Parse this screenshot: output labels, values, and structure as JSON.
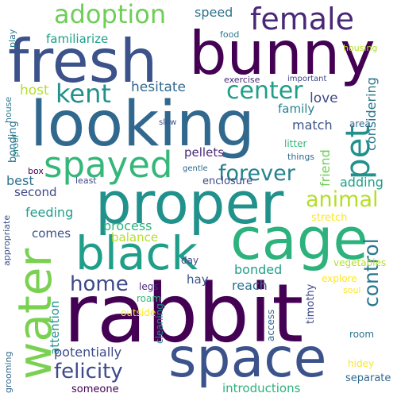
{
  "words": [
    {
      "text": "rabbit",
      "color": "#440154"
    },
    {
      "text": "bunny",
      "color": "#440154"
    },
    {
      "text": "fresh",
      "color": "#3b528b"
    },
    {
      "text": "looking",
      "color": "#31688e"
    },
    {
      "text": "proper",
      "color": "#21918c"
    },
    {
      "text": "cage",
      "color": "#2db27d"
    },
    {
      "text": "water",
      "color": "#7ad151"
    },
    {
      "text": "space",
      "color": "#3b528b"
    },
    {
      "text": "black",
      "color": "#1f9e89"
    },
    {
      "text": "female",
      "color": "#482878"
    },
    {
      "text": "spayed",
      "color": "#35b779"
    },
    {
      "text": "pet",
      "color": "#21918c"
    },
    {
      "text": "adoption",
      "color": "#6ece58"
    },
    {
      "text": "kent",
      "color": "#21918c"
    },
    {
      "text": "center",
      "color": "#1f9e89"
    },
    {
      "text": "forever",
      "color": "#26828e"
    },
    {
      "text": "animal",
      "color": "#b5de2b"
    },
    {
      "text": "home",
      "color": "#3e4989"
    },
    {
      "text": "control",
      "color": "#2a788e"
    },
    {
      "text": "felicity",
      "color": "#3e4989"
    },
    {
      "text": "host",
      "color": "#b5de2b"
    },
    {
      "text": "hesitate",
      "color": "#31688e"
    },
    {
      "text": "familiarize",
      "color": "#1f9e89"
    },
    {
      "text": "speed",
      "color": "#2c728e"
    },
    {
      "text": "love",
      "color": "#3e4989"
    },
    {
      "text": "considering",
      "color": "#2a788e"
    },
    {
      "text": "family",
      "color": "#26828e"
    },
    {
      "text": "match",
      "color": "#3b528b"
    },
    {
      "text": "friend",
      "color": "#6ece58"
    },
    {
      "text": "adding",
      "color": "#1f9e89"
    },
    {
      "text": "best",
      "color": "#2c728e"
    },
    {
      "text": "second",
      "color": "#3e4989"
    },
    {
      "text": "feeding",
      "color": "#1f9e89"
    },
    {
      "text": "comes",
      "color": "#3b528b"
    },
    {
      "text": "process",
      "color": "#2db27d"
    },
    {
      "text": "balance",
      "color": "#b5de2b"
    },
    {
      "text": "pellets",
      "color": "#482878"
    },
    {
      "text": "enclosure",
      "color": "#3e4989"
    },
    {
      "text": "bonded",
      "color": "#1f9e89"
    },
    {
      "text": "reach",
      "color": "#2c728e"
    },
    {
      "text": "hay",
      "color": "#3b528b"
    },
    {
      "text": "timothy",
      "color": "#3e4989"
    },
    {
      "text": "stretch",
      "color": "#fde725"
    },
    {
      "text": "vegetables",
      "color": "#b5de2b"
    },
    {
      "text": "explore",
      "color": "#fde725"
    },
    {
      "text": "soul",
      "color": "#fde725"
    },
    {
      "text": "attention",
      "color": "#21918c"
    },
    {
      "text": "potentially",
      "color": "#3e4989"
    },
    {
      "text": "someone",
      "color": "#440154"
    },
    {
      "text": "introductions",
      "color": "#2db27d"
    },
    {
      "text": "separate",
      "color": "#31688e"
    },
    {
      "text": "hidey",
      "color": "#fde725"
    },
    {
      "text": "room",
      "color": "#2c728e"
    },
    {
      "text": "access",
      "color": "#31688e"
    },
    {
      "text": "cleaning",
      "color": "#21918c"
    },
    {
      "text": "outside",
      "color": "#fde725"
    },
    {
      "text": "legs",
      "color": "#482878"
    },
    {
      "text": "roam",
      "color": "#35b779"
    },
    {
      "text": "day",
      "color": "#3e4989"
    },
    {
      "text": "grooming",
      "color": "#31688e"
    },
    {
      "text": "appropriate",
      "color": "#3b528b"
    },
    {
      "text": "house",
      "color": "#2a788e"
    },
    {
      "text": "proof",
      "color": "#21918c"
    },
    {
      "text": "play",
      "color": "#2a788e"
    },
    {
      "text": "bonding",
      "color": "#2c728e"
    },
    {
      "text": "box",
      "color": "#440154"
    },
    {
      "text": "least",
      "color": "#3e4989"
    },
    {
      "text": "gentle",
      "color": "#31688e"
    },
    {
      "text": "slow",
      "color": "#3b528b"
    },
    {
      "text": "things",
      "color": "#31688e"
    },
    {
      "text": "litter",
      "color": "#35b779"
    },
    {
      "text": "area",
      "color": "#31688e"
    },
    {
      "text": "important",
      "color": "#3e4989"
    },
    {
      "text": "exercise",
      "color": "#482878"
    },
    {
      "text": "food",
      "color": "#2a788e"
    },
    {
      "text": "housing",
      "color": "#b5de2b"
    }
  ]
}
